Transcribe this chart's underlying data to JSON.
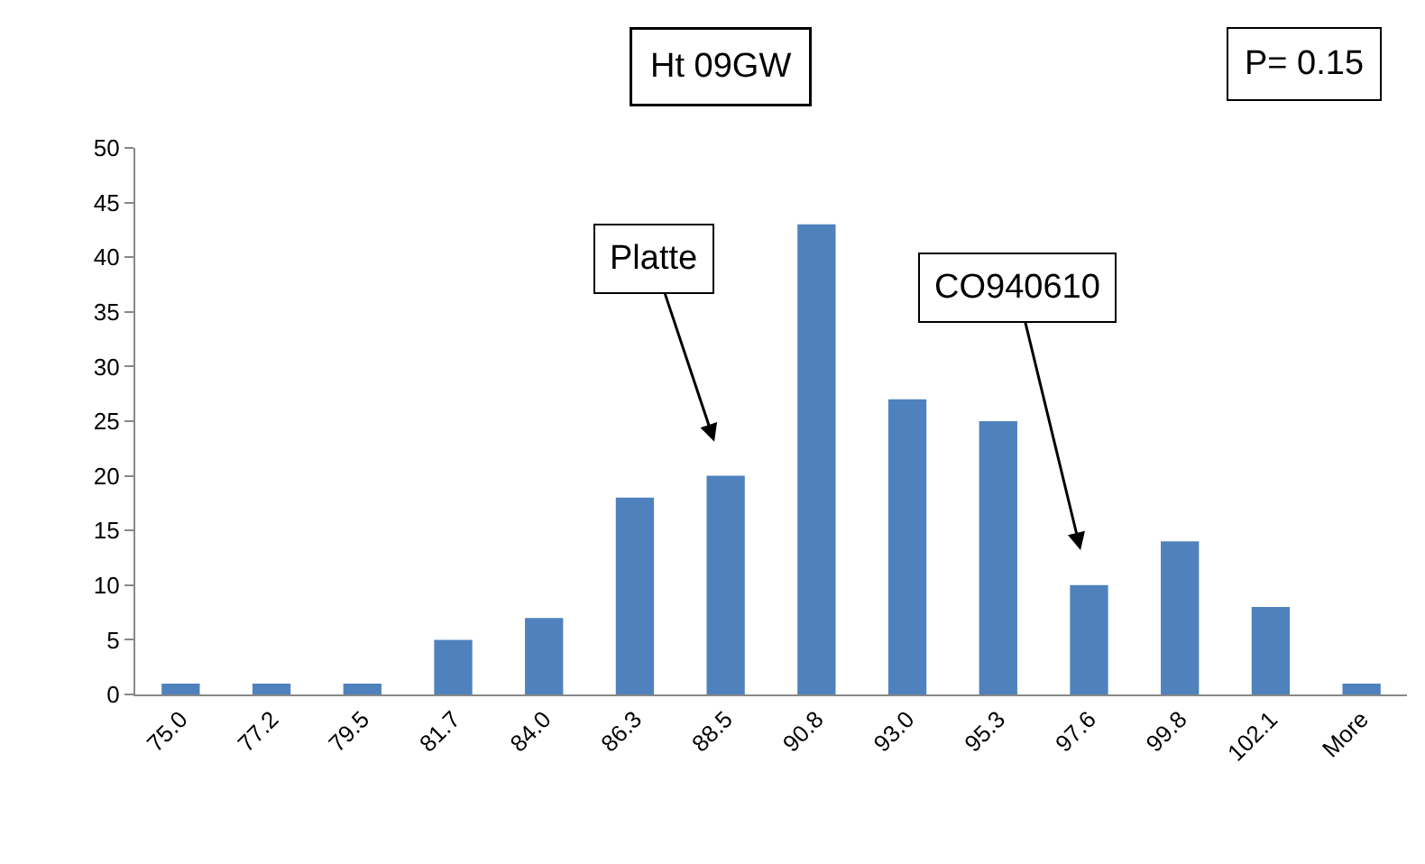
{
  "chart_data": {
    "type": "bar",
    "title": "Ht 09GW",
    "categories": [
      "75.0",
      "77.2",
      "79.5",
      "81.7",
      "84.0",
      "86.3",
      "88.5",
      "90.8",
      "93.0",
      "95.3",
      "97.6",
      "99.8",
      "102.1",
      "More"
    ],
    "values": [
      1,
      1,
      1,
      5,
      7,
      18,
      20,
      43,
      27,
      25,
      10,
      14,
      8,
      1
    ],
    "color": "#4f81bd",
    "ylim": [
      0,
      50
    ],
    "yticks": [
      0,
      5,
      10,
      15,
      20,
      25,
      30,
      35,
      40,
      45,
      50
    ],
    "annotations": [
      "P= 0.15",
      {
        "text": "Platte",
        "x": "88.5",
        "y": 20
      },
      {
        "text": "CO940610",
        "x": "97.6",
        "y": 10
      }
    ]
  }
}
